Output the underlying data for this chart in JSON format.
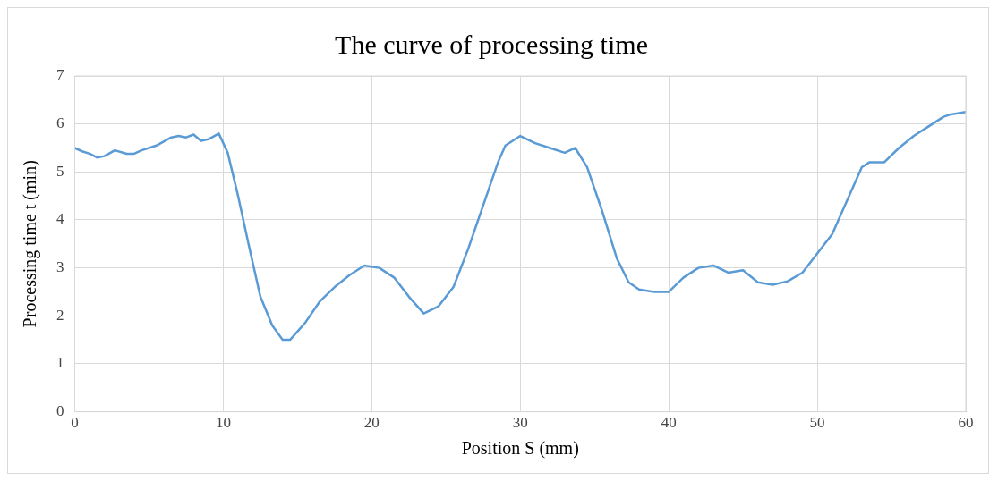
{
  "chart_data": {
    "type": "line",
    "title": "The curve of processing time",
    "xlabel": "Position S (mm)",
    "ylabel": "Processing time t (min)",
    "xlim": [
      0,
      60
    ],
    "xticks": [
      0,
      10,
      20,
      30,
      40,
      50,
      60
    ],
    "ylim": [
      0,
      7
    ],
    "yticks": [
      0,
      1,
      2,
      3,
      4,
      5,
      6,
      7
    ],
    "grid": true,
    "marker": "none",
    "line_style": "solid",
    "series": [
      {
        "color": "#5b9bd5",
        "x": [
          0,
          0.5,
          1,
          1.5,
          2,
          2.7,
          3.5,
          4,
          4.5,
          5.5,
          6.5,
          7,
          7.5,
          8,
          8.5,
          9,
          9.7,
          10.3,
          11,
          11.7,
          12.5,
          13.3,
          14,
          14.5,
          15.5,
          16.5,
          17.5,
          18.5,
          19.5,
          20.5,
          21.5,
          22.5,
          23.5,
          24.5,
          25.5,
          26.5,
          27.5,
          28.5,
          29,
          30,
          31,
          32,
          33,
          33.7,
          34.5,
          35.5,
          36.5,
          37.3,
          38,
          39,
          40,
          41,
          42,
          43,
          44,
          45,
          46,
          47,
          48,
          49,
          50,
          51,
          52,
          53,
          53.5,
          54.5,
          55.5,
          56.5,
          57.5,
          58.5,
          59,
          60
        ],
        "values": [
          5.5,
          5.43,
          5.38,
          5.3,
          5.33,
          5.45,
          5.38,
          5.38,
          5.45,
          5.55,
          5.72,
          5.75,
          5.72,
          5.78,
          5.65,
          5.68,
          5.8,
          5.4,
          4.5,
          3.5,
          2.4,
          1.8,
          1.5,
          1.5,
          1.85,
          2.3,
          2.6,
          2.85,
          3.05,
          3.0,
          2.8,
          2.4,
          2.05,
          2.2,
          2.6,
          3.4,
          4.3,
          5.2,
          5.55,
          5.75,
          5.6,
          5.5,
          5.4,
          5.5,
          5.1,
          4.2,
          3.2,
          2.7,
          2.55,
          2.5,
          2.5,
          2.8,
          3.0,
          3.05,
          2.9,
          2.95,
          2.7,
          2.65,
          2.72,
          2.9,
          3.3,
          3.7,
          4.4,
          5.1,
          5.2,
          5.2,
          5.5,
          5.75,
          5.95,
          6.15,
          6.2,
          6.25
        ]
      }
    ]
  }
}
